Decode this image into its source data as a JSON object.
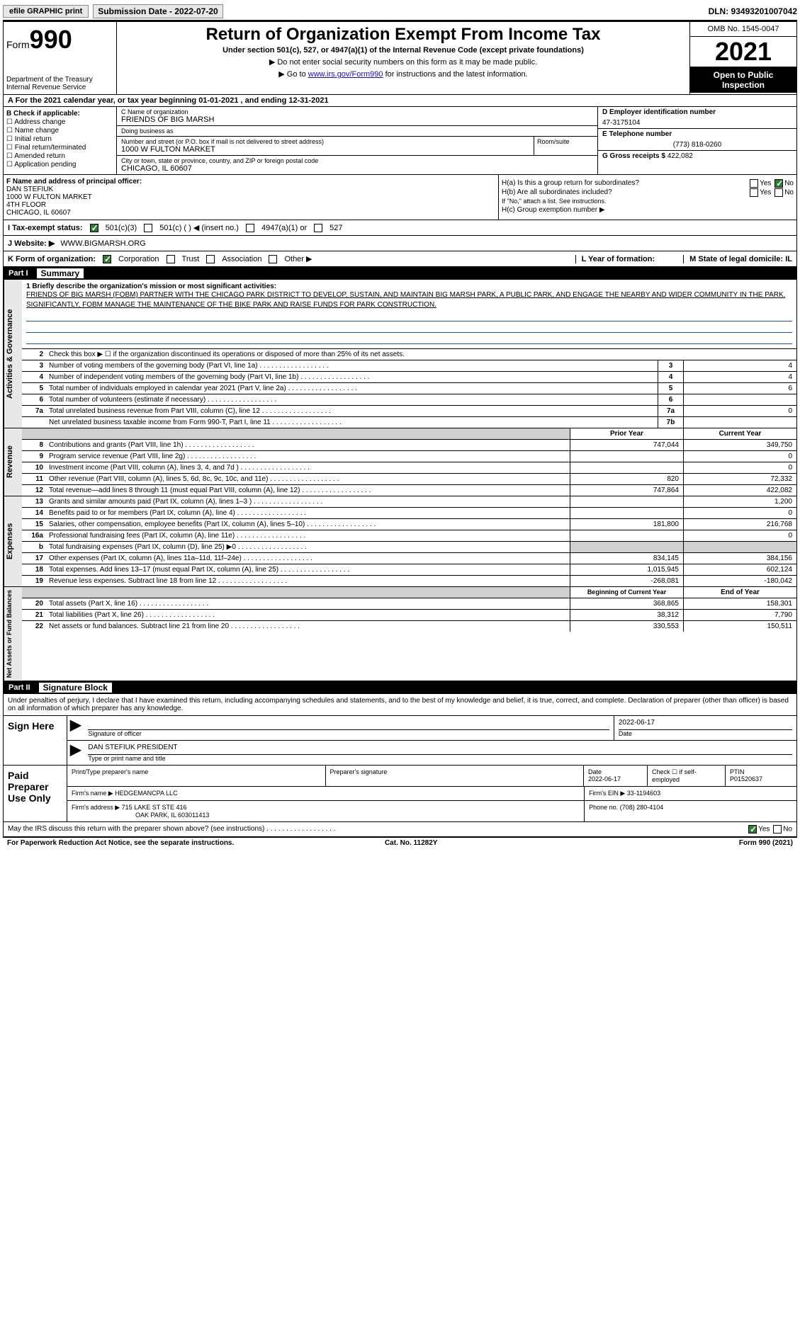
{
  "topbar": {
    "efile": "efile GRAPHIC print",
    "submission": "Submission Date - 2022-07-20",
    "dln": "DLN: 93493201007042"
  },
  "header": {
    "form_word": "Form",
    "form_num": "990",
    "dept": "Department of the Treasury",
    "irs": "Internal Revenue Service",
    "title": "Return of Organization Exempt From Income Tax",
    "subtitle": "Under section 501(c), 527, or 4947(a)(1) of the Internal Revenue Code (except private foundations)",
    "instr1": "▶ Do not enter social security numbers on this form as it may be made public.",
    "instr2_pre": "▶ Go to ",
    "instr2_link": "www.irs.gov/Form990",
    "instr2_post": " for instructions and the latest information.",
    "omb": "OMB No. 1545-0047",
    "year": "2021",
    "open": "Open to Public Inspection"
  },
  "row_a": "A For the 2021 calendar year, or tax year beginning 01-01-2021    , and ending 12-31-2021",
  "col_b": {
    "hdr": "B Check if applicable:",
    "opts": [
      "Address change",
      "Name change",
      "Initial return",
      "Final return/terminated",
      "Amended return",
      "Application pending"
    ]
  },
  "col_c": {
    "name_label": "C Name of organization",
    "name": "FRIENDS OF BIG MARSH",
    "dba_label": "Doing business as",
    "dba": "",
    "addr_label": "Number and street (or P.O. box if mail is not delivered to street address)",
    "room_label": "Room/suite",
    "addr": "1000 W FULTON MARKET",
    "city_label": "City or town, state or province, country, and ZIP or foreign postal code",
    "city": "CHICAGO, IL  60607"
  },
  "col_d": {
    "ein_label": "D Employer identification number",
    "ein": "47-3175104",
    "tel_label": "E Telephone number",
    "tel": "(773) 818-0260",
    "gross_label": "G Gross receipts $",
    "gross": "422,082"
  },
  "col_f": {
    "label": "F  Name and address of principal officer:",
    "name": "DAN STEFIUK",
    "l1": "1000 W FULTON MARKET",
    "l2": "4TH FLOOR",
    "l3": "CHICAGO, IL  60607"
  },
  "col_h": {
    "ha": "H(a)  Is this a group return for subordinates?",
    "hb": "H(b)  Are all subordinates included?",
    "hb_note": "If \"No,\" attach a list. See instructions.",
    "hc": "H(c)  Group exemption number ▶",
    "yes": "Yes",
    "no": "No"
  },
  "row_i": {
    "label": "I   Tax-exempt status:",
    "o1": "501(c)(3)",
    "o2": "501(c) (  ) ◀ (insert no.)",
    "o3": "4947(a)(1) or",
    "o4": "527"
  },
  "row_j": {
    "label": "J   Website: ▶",
    "val": "WWW.BIGMARSH.ORG"
  },
  "row_k": {
    "label": "K Form of organization:",
    "o1": "Corporation",
    "o2": "Trust",
    "o3": "Association",
    "o4": "Other ▶",
    "l_label": "L Year of formation:",
    "l_val": "",
    "m_label": "M State of legal domicile: IL"
  },
  "part1": {
    "num": "Part I",
    "title": "Summary"
  },
  "summary": {
    "l1_label": "1   Briefly describe the organization's mission or most significant activities:",
    "l1_text": "FRIENDS OF BIG MARSH (FOBM) PARTNER WITH THE CHICAGO PARK DISTRICT TO DEVELOP, SUSTAIN, AND MAINTAIN BIG MARSH PARK, A PUBLIC PARK, AND ENGAGE THE NEARBY AND WIDER COMMUNITY IN THE PARK. SIGNIFICANTLY, FOBM MANAGE THE MAINTENANCE OF THE BIKE PARK AND RAISE FUNDS FOR PARK CONSTRUCTION.",
    "l2": "Check this box ▶ ☐  if the organization discontinued its operations or disposed of more than 25% of its net assets.",
    "rows": [
      {
        "n": "3",
        "t": "Number of voting members of the governing body (Part VI, line 1a)",
        "box": "3",
        "v": "4"
      },
      {
        "n": "4",
        "t": "Number of independent voting members of the governing body (Part VI, line 1b)",
        "box": "4",
        "v": "4"
      },
      {
        "n": "5",
        "t": "Total number of individuals employed in calendar year 2021 (Part V, line 2a)",
        "box": "5",
        "v": "6"
      },
      {
        "n": "6",
        "t": "Total number of volunteers (estimate if necessary)",
        "box": "6",
        "v": ""
      },
      {
        "n": "7a",
        "t": "Total unrelated business revenue from Part VIII, column (C), line 12",
        "box": "7a",
        "v": "0"
      },
      {
        "n": "",
        "t": "Net unrelated business taxable income from Form 990-T, Part I, line 11",
        "box": "7b",
        "v": ""
      }
    ]
  },
  "revexp": {
    "hdr_prior": "Prior Year",
    "hdr_curr": "Current Year",
    "revenue": [
      {
        "n": "8",
        "t": "Contributions and grants (Part VIII, line 1h)",
        "p": "747,044",
        "c": "349,750"
      },
      {
        "n": "9",
        "t": "Program service revenue (Part VIII, line 2g)",
        "p": "",
        "c": "0"
      },
      {
        "n": "10",
        "t": "Investment income (Part VIII, column (A), lines 3, 4, and 7d )",
        "p": "",
        "c": "0"
      },
      {
        "n": "11",
        "t": "Other revenue (Part VIII, column (A), lines 5, 6d, 8c, 9c, 10c, and 11e)",
        "p": "820",
        "c": "72,332"
      },
      {
        "n": "12",
        "t": "Total revenue—add lines 8 through 11 (must equal Part VIII, column (A), line 12)",
        "p": "747,864",
        "c": "422,082"
      }
    ],
    "expenses": [
      {
        "n": "13",
        "t": "Grants and similar amounts paid (Part IX, column (A), lines 1–3 )",
        "p": "",
        "c": "1,200"
      },
      {
        "n": "14",
        "t": "Benefits paid to or for members (Part IX, column (A), line 4)",
        "p": "",
        "c": "0"
      },
      {
        "n": "15",
        "t": "Salaries, other compensation, employee benefits (Part IX, column (A), lines 5–10)",
        "p": "181,800",
        "c": "216,768"
      },
      {
        "n": "16a",
        "t": "Professional fundraising fees (Part IX, column (A), line 11e)",
        "p": "",
        "c": "0"
      },
      {
        "n": "b",
        "t": "Total fundraising expenses (Part IX, column (D), line 25) ▶0",
        "p": "shade",
        "c": "shade"
      },
      {
        "n": "17",
        "t": "Other expenses (Part IX, column (A), lines 11a–11d, 11f–24e)",
        "p": "834,145",
        "c": "384,156"
      },
      {
        "n": "18",
        "t": "Total expenses. Add lines 13–17 (must equal Part IX, column (A), line 25)",
        "p": "1,015,945",
        "c": "602,124"
      },
      {
        "n": "19",
        "t": "Revenue less expenses. Subtract line 18 from line 12",
        "p": "-268,081",
        "c": "-180,042"
      }
    ],
    "hdr_begin": "Beginning of Current Year",
    "hdr_end": "End of Year",
    "net": [
      {
        "n": "20",
        "t": "Total assets (Part X, line 16)",
        "p": "368,865",
        "c": "158,301"
      },
      {
        "n": "21",
        "t": "Total liabilities (Part X, line 26)",
        "p": "38,312",
        "c": "7,790"
      },
      {
        "n": "22",
        "t": "Net assets or fund balances. Subtract line 21 from line 20",
        "p": "330,553",
        "c": "150,511"
      }
    ]
  },
  "vlabels": {
    "ag": "Activities & Governance",
    "rev": "Revenue",
    "exp": "Expenses",
    "net": "Net Assets or Fund Balances"
  },
  "part2": {
    "num": "Part II",
    "title": "Signature Block"
  },
  "sig": {
    "intro": "Under penalties of perjury, I declare that I have examined this return, including accompanying schedules and statements, and to the best of my knowledge and belief, it is true, correct, and complete. Declaration of preparer (other than officer) is based on all information of which preparer has any knowledge.",
    "sign_here": "Sign Here",
    "sig_of_officer": "Signature of officer",
    "date1": "2022-06-17",
    "date_label": "Date",
    "officer": "DAN STEFIUK PRESIDENT",
    "type_label": "Type or print name and title",
    "paid": "Paid Preparer Use Only",
    "col1": "Print/Type preparer's name",
    "col2": "Preparer's signature",
    "col3": "Date",
    "col3v": "2022-06-17",
    "col4": "Check ☐ if self-employed",
    "col5": "PTIN",
    "col5v": "P01520637",
    "firm_label": "Firm's name   ▶",
    "firm": "HEDGEMANCPA LLC",
    "ein_label": "Firm's EIN ▶",
    "ein": "33-1194603",
    "addr_label": "Firm's address ▶",
    "addr": "715 LAKE ST STE 416",
    "addr2": "OAK PARK, IL  603011413",
    "phone_label": "Phone no.",
    "phone": "(708) 280-4104",
    "may": "May the IRS discuss this return with the preparer shown above? (see instructions)",
    "yes": "Yes",
    "no": "No"
  },
  "footer": {
    "left": "For Paperwork Reduction Act Notice, see the separate instructions.",
    "mid": "Cat. No. 11282Y",
    "right": "Form 990 (2021)"
  }
}
